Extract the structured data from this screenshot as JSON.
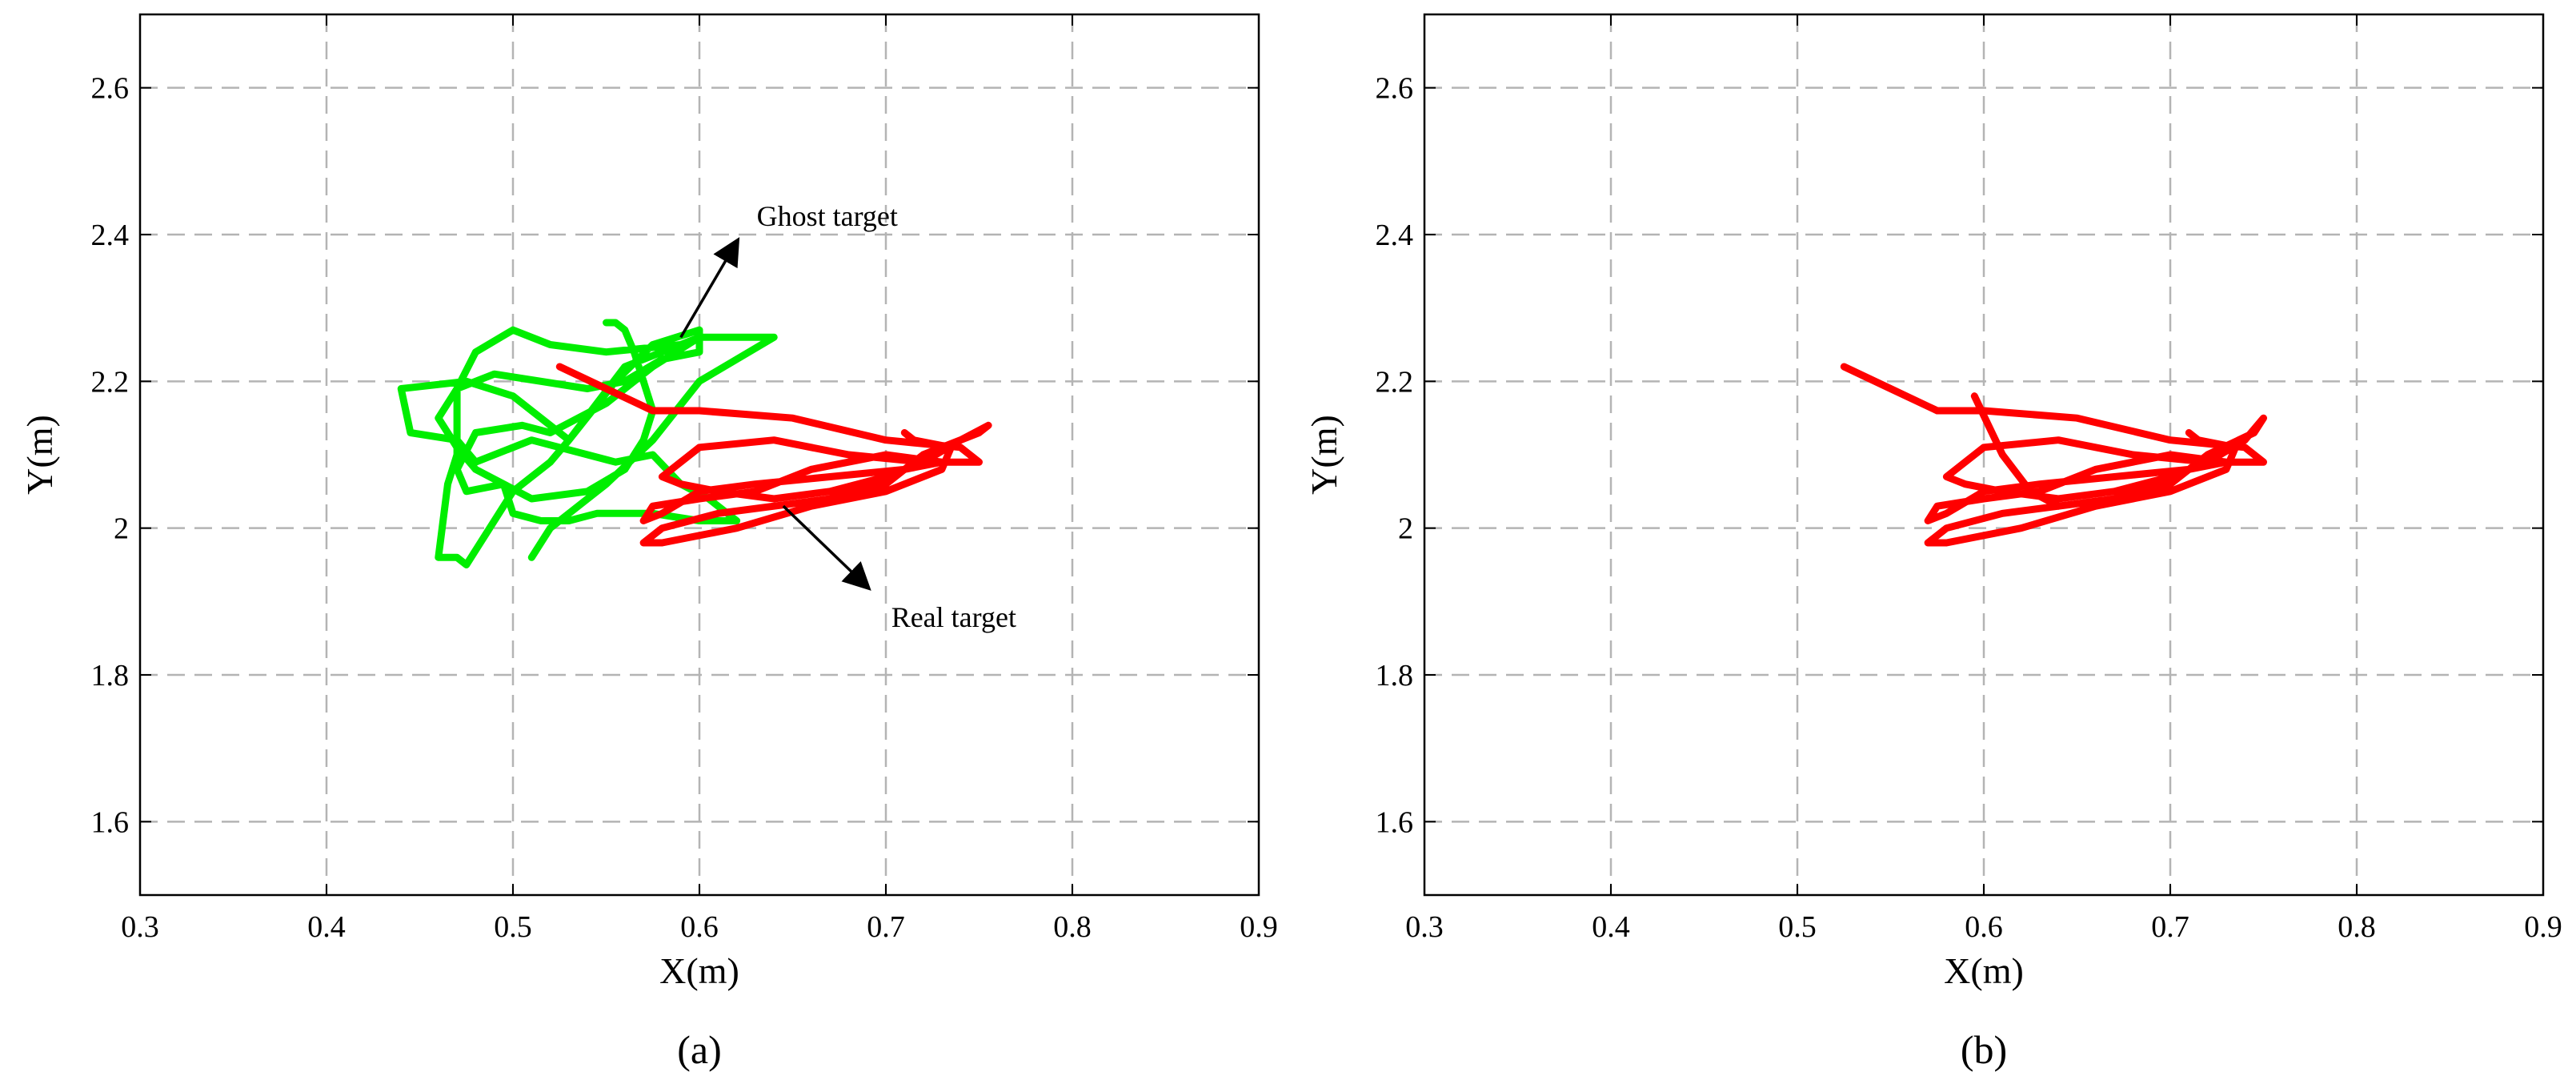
{
  "chart_data": [
    {
      "type": "line",
      "panel_label": "(a)",
      "xlabel": "X(m)",
      "ylabel": "Y(m)",
      "xlim": [
        0.3,
        0.9
      ],
      "ylim": [
        1.5,
        2.7
      ],
      "xticks": [
        "0.3",
        "0.4",
        "0.5",
        "0.6",
        "0.7",
        "0.8",
        "0.9"
      ],
      "yticks": [
        "1.6",
        "1.8",
        "2",
        "2.2",
        "2.4",
        "2.6"
      ],
      "grid": true,
      "annotations": [
        {
          "text": "Ghost target",
          "arrow_from": [
            0.59,
            2.26
          ],
          "arrow_to": [
            0.62,
            2.39
          ]
        },
        {
          "text": "Real target",
          "arrow_from": [
            0.645,
            2.03
          ],
          "arrow_to": [
            0.69,
            1.92
          ]
        }
      ],
      "series": [
        {
          "color": "#00ee00",
          "x": [
            0.51,
            0.52,
            0.55,
            0.575,
            0.6,
            0.64,
            0.625,
            0.6,
            0.56,
            0.53,
            0.5,
            0.475,
            0.44,
            0.445,
            0.47,
            0.48,
            0.51,
            0.54,
            0.555,
            0.575,
            0.59,
            0.605,
            0.62,
            0.6,
            0.575,
            0.555,
            0.545,
            0.53,
            0.515,
            0.5,
            0.495,
            0.475,
            0.47,
            0.48,
            0.505,
            0.52,
            0.55,
            0.575,
            0.6,
            0.59,
            0.55,
            0.52,
            0.5,
            0.48,
            0.47,
            0.47,
            0.465,
            0.46,
            0.47,
            0.475,
            0.5,
            0.52,
            0.53,
            0.555,
            0.575,
            0.6,
            0.6,
            0.58,
            0.56,
            0.54,
            0.515,
            0.49,
            0.47,
            0.46,
            0.47,
            0.48,
            0.51,
            0.54,
            0.56,
            0.57,
            0.575,
            0.57,
            0.565,
            0.56,
            0.555,
            0.55
          ],
          "y": [
            1.96,
            2.0,
            2.06,
            2.12,
            2.2,
            2.26,
            2.26,
            2.26,
            2.22,
            2.12,
            2.18,
            2.2,
            2.19,
            2.13,
            2.12,
            2.09,
            2.12,
            2.1,
            2.09,
            2.1,
            2.06,
            2.04,
            2.01,
            2.01,
            2.02,
            2.02,
            2.02,
            2.01,
            2.01,
            2.02,
            2.06,
            2.05,
            2.08,
            2.13,
            2.14,
            2.13,
            2.17,
            2.22,
            2.26,
            2.25,
            2.24,
            2.25,
            2.27,
            2.24,
            2.19,
            2.1,
            2.06,
            1.96,
            1.96,
            1.95,
            2.05,
            2.09,
            2.12,
            2.2,
            2.25,
            2.27,
            2.24,
            2.23,
            2.2,
            2.19,
            2.2,
            2.21,
            2.19,
            2.15,
            2.11,
            2.08,
            2.04,
            2.05,
            2.08,
            2.12,
            2.16,
            2.2,
            2.24,
            2.27,
            2.28,
            2.28
          ]
        },
        {
          "color": "#ff0000",
          "x": [
            0.525,
            0.55,
            0.575,
            0.6,
            0.65,
            0.7,
            0.74,
            0.75,
            0.73,
            0.7,
            0.66,
            0.63,
            0.6,
            0.575,
            0.57,
            0.58,
            0.6,
            0.63,
            0.67,
            0.71,
            0.73,
            0.72,
            0.7,
            0.67,
            0.64,
            0.61,
            0.59,
            0.58,
            0.6,
            0.64,
            0.68,
            0.72,
            0.74,
            0.755,
            0.75,
            0.72,
            0.7,
            0.67,
            0.64,
            0.61,
            0.58,
            0.57,
            0.58,
            0.62,
            0.66,
            0.7,
            0.73,
            0.735,
            0.715,
            0.71
          ],
          "y": [
            2.22,
            2.19,
            2.16,
            2.16,
            2.15,
            2.12,
            2.11,
            2.09,
            2.09,
            2.1,
            2.08,
            2.05,
            2.04,
            2.03,
            2.01,
            2.02,
            2.05,
            2.06,
            2.07,
            2.08,
            2.09,
            2.09,
            2.07,
            2.05,
            2.04,
            2.05,
            2.06,
            2.07,
            2.11,
            2.12,
            2.1,
            2.09,
            2.12,
            2.14,
            2.13,
            2.1,
            2.06,
            2.04,
            2.03,
            2.02,
            2.0,
            1.98,
            1.98,
            2.0,
            2.03,
            2.05,
            2.08,
            2.11,
            2.12,
            2.13
          ]
        }
      ]
    },
    {
      "type": "line",
      "panel_label": "(b)",
      "xlabel": "X(m)",
      "ylabel": "Y(m)",
      "xlim": [
        0.3,
        0.9
      ],
      "ylim": [
        1.5,
        2.7
      ],
      "xticks": [
        "0.3",
        "0.4",
        "0.5",
        "0.6",
        "0.7",
        "0.8",
        "0.9"
      ],
      "yticks": [
        "1.6",
        "1.8",
        "2",
        "2.2",
        "2.4",
        "2.6"
      ],
      "grid": true,
      "annotations": [],
      "series": [
        {
          "color": "#ff0000",
          "x": [
            0.525,
            0.55,
            0.575,
            0.6,
            0.65,
            0.7,
            0.74,
            0.75,
            0.73,
            0.7,
            0.66,
            0.63,
            0.6,
            0.575,
            0.57,
            0.58,
            0.6,
            0.63,
            0.67,
            0.71,
            0.73,
            0.72,
            0.7,
            0.67,
            0.64,
            0.61,
            0.59,
            0.58,
            0.6,
            0.64,
            0.68,
            0.72,
            0.74,
            0.75,
            0.745,
            0.72,
            0.7,
            0.67,
            0.64,
            0.61,
            0.58,
            0.57,
            0.58,
            0.62,
            0.66,
            0.7,
            0.73,
            0.735,
            0.715,
            0.71
          ],
          "y": [
            2.22,
            2.19,
            2.16,
            2.16,
            2.15,
            2.12,
            2.11,
            2.09,
            2.09,
            2.1,
            2.08,
            2.05,
            2.04,
            2.03,
            2.01,
            2.02,
            2.05,
            2.06,
            2.07,
            2.08,
            2.09,
            2.09,
            2.07,
            2.05,
            2.04,
            2.05,
            2.06,
            2.07,
            2.11,
            2.12,
            2.1,
            2.09,
            2.12,
            2.15,
            2.13,
            2.1,
            2.06,
            2.04,
            2.03,
            2.02,
            2.0,
            1.98,
            1.98,
            2.0,
            2.03,
            2.05,
            2.08,
            2.11,
            2.12,
            2.13
          ]
        },
        {
          "color": "#ff0000",
          "x": [
            0.595,
            0.61,
            0.625,
            0.64
          ],
          "y": [
            2.18,
            2.1,
            2.05,
            2.03
          ]
        }
      ]
    }
  ]
}
